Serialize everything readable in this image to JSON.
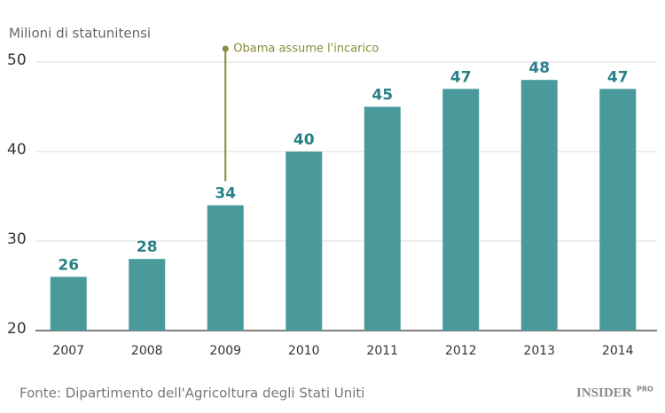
{
  "chart_data": {
    "type": "bar",
    "y_label": "Milioni di statunitensi",
    "categories": [
      "2007",
      "2008",
      "2009",
      "2010",
      "2011",
      "2012",
      "2013",
      "2014"
    ],
    "values": [
      26,
      28,
      34,
      40,
      45,
      47,
      48,
      47
    ],
    "color": "#4a9a9b",
    "ylim": [
      20,
      50
    ],
    "yticks": [
      20,
      30,
      40,
      50
    ],
    "grid": true,
    "annotations": [
      {
        "text": "Obama assume l'incarico",
        "category": "2009",
        "color": "#8a8a3a"
      }
    ],
    "source": "Fonte: Dipartimento dell'Agricoltura degli Stati Uniti",
    "logo": "INSIDER",
    "logo_sup": "PRO"
  }
}
